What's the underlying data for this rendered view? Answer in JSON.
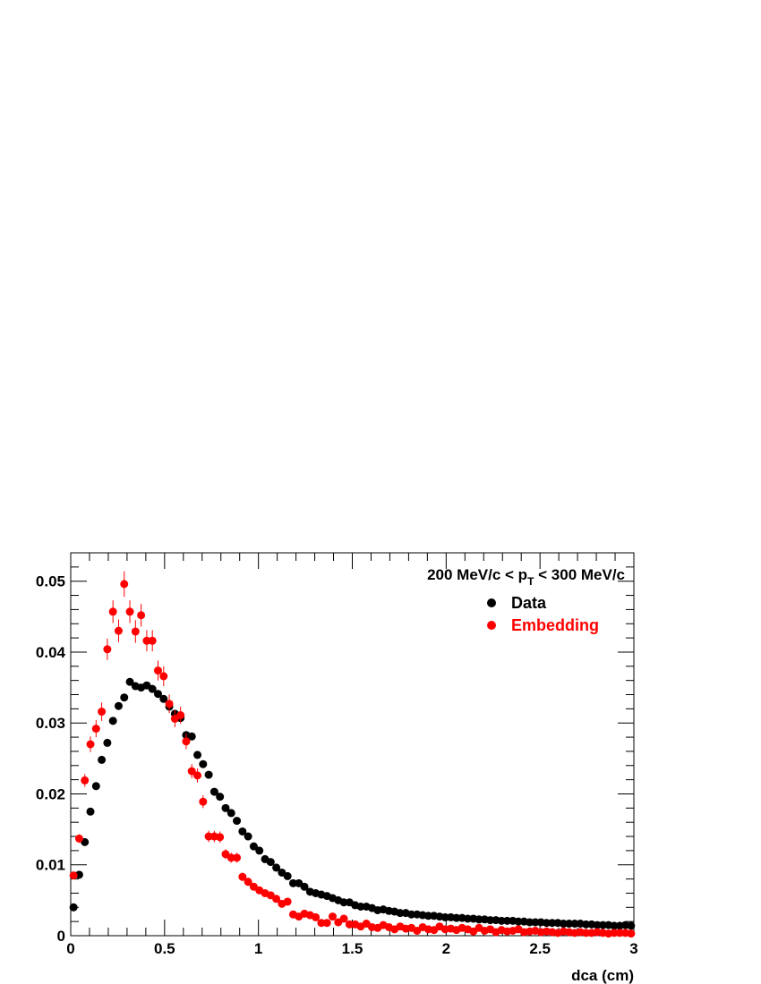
{
  "chart_data": {
    "type": "scatter",
    "header": {
      "part1": "200 MeV/c < p",
      "sub": "T",
      "part2": " < 300 MeV/c"
    },
    "xlabel": "dca (cm)",
    "ylabel": "",
    "xlim": [
      0,
      3
    ],
    "ylim": [
      0,
      0.054
    ],
    "x_ticks": [
      {
        "value": 0,
        "label": "0"
      },
      {
        "value": 0.5,
        "label": "0.5"
      },
      {
        "value": 1,
        "label": "1"
      },
      {
        "value": 1.5,
        "label": "1.5"
      },
      {
        "value": 2,
        "label": "2"
      },
      {
        "value": 2.5,
        "label": "2.5"
      },
      {
        "value": 3,
        "label": "3"
      }
    ],
    "y_ticks": [
      {
        "value": 0,
        "label": "0"
      },
      {
        "value": 0.01,
        "label": "0.01"
      },
      {
        "value": 0.02,
        "label": "0.02"
      },
      {
        "value": 0.03,
        "label": "0.03"
      },
      {
        "value": 0.04,
        "label": "0.04"
      },
      {
        "value": 0.05,
        "label": "0.05"
      }
    ],
    "grid": false,
    "legend_position": "top-right",
    "series": [
      {
        "name": "Data",
        "color": "#000000",
        "x": [
          0.015,
          0.045,
          0.075,
          0.105,
          0.135,
          0.165,
          0.195,
          0.225,
          0.255,
          0.285,
          0.315,
          0.345,
          0.375,
          0.405,
          0.435,
          0.465,
          0.495,
          0.525,
          0.555,
          0.585,
          0.615,
          0.645,
          0.675,
          0.705,
          0.735,
          0.765,
          0.795,
          0.825,
          0.855,
          0.885,
          0.915,
          0.945,
          0.975,
          1.005,
          1.035,
          1.065,
          1.095,
          1.125,
          1.155,
          1.185,
          1.215,
          1.245,
          1.275,
          1.305,
          1.335,
          1.365,
          1.395,
          1.425,
          1.455,
          1.485,
          1.515,
          1.545,
          1.575,
          1.605,
          1.635,
          1.665,
          1.695,
          1.725,
          1.755,
          1.785,
          1.815,
          1.845,
          1.875,
          1.905,
          1.935,
          1.965,
          1.995,
          2.025,
          2.055,
          2.085,
          2.115,
          2.145,
          2.175,
          2.205,
          2.235,
          2.265,
          2.295,
          2.325,
          2.355,
          2.385,
          2.415,
          2.445,
          2.475,
          2.505,
          2.535,
          2.565,
          2.595,
          2.625,
          2.655,
          2.685,
          2.715,
          2.745,
          2.775,
          2.805,
          2.835,
          2.865,
          2.895,
          2.925,
          2.955,
          2.985
        ],
        "y": [
          0.004,
          0.0086,
          0.0132,
          0.0175,
          0.0211,
          0.0248,
          0.0272,
          0.0303,
          0.0324,
          0.0336,
          0.0358,
          0.0352,
          0.035,
          0.0353,
          0.0348,
          0.0341,
          0.0334,
          0.0323,
          0.0313,
          0.0307,
          0.0283,
          0.0281,
          0.0255,
          0.0242,
          0.0227,
          0.0203,
          0.0196,
          0.018,
          0.0173,
          0.0162,
          0.0147,
          0.014,
          0.0126,
          0.012,
          0.0108,
          0.0104,
          0.0096,
          0.0089,
          0.0084,
          0.0074,
          0.0074,
          0.0069,
          0.0062,
          0.006,
          0.0058,
          0.0056,
          0.0053,
          0.005,
          0.0047,
          0.0047,
          0.0043,
          0.0041,
          0.0041,
          0.0039,
          0.0036,
          0.0037,
          0.0035,
          0.0034,
          0.0032,
          0.0032,
          0.003,
          0.003,
          0.0029,
          0.0028,
          0.0028,
          0.0027,
          0.0026,
          0.0026,
          0.0025,
          0.0025,
          0.0024,
          0.0024,
          0.0023,
          0.0023,
          0.0022,
          0.0022,
          0.0021,
          0.0021,
          0.0021,
          0.002,
          0.002,
          0.0019,
          0.0019,
          0.0019,
          0.0018,
          0.0018,
          0.0018,
          0.0017,
          0.0017,
          0.0017,
          0.0017,
          0.0016,
          0.0016,
          0.0015,
          0.0015,
          0.0015,
          0.0014,
          0.0014,
          0.0015,
          0.0014
        ],
        "err": []
      },
      {
        "name": "Embedding",
        "color": "#ff0000",
        "x": [
          0.015,
          0.045,
          0.075,
          0.105,
          0.135,
          0.165,
          0.195,
          0.225,
          0.255,
          0.285,
          0.315,
          0.345,
          0.375,
          0.405,
          0.435,
          0.465,
          0.495,
          0.525,
          0.555,
          0.585,
          0.615,
          0.645,
          0.675,
          0.705,
          0.735,
          0.765,
          0.795,
          0.825,
          0.855,
          0.885,
          0.915,
          0.945,
          0.975,
          1.005,
          1.035,
          1.065,
          1.095,
          1.125,
          1.155,
          1.185,
          1.215,
          1.245,
          1.275,
          1.305,
          1.335,
          1.365,
          1.395,
          1.425,
          1.455,
          1.485,
          1.515,
          1.545,
          1.575,
          1.605,
          1.635,
          1.665,
          1.695,
          1.725,
          1.755,
          1.785,
          1.815,
          1.845,
          1.875,
          1.905,
          1.935,
          1.965,
          1.995,
          2.025,
          2.055,
          2.085,
          2.115,
          2.145,
          2.175,
          2.205,
          2.235,
          2.265,
          2.295,
          2.325,
          2.355,
          2.385,
          2.415,
          2.445,
          2.475,
          2.505,
          2.535,
          2.565,
          2.595,
          2.625,
          2.655,
          2.685,
          2.715,
          2.745,
          2.775,
          2.805,
          2.835,
          2.865,
          2.895,
          2.925,
          2.955,
          2.985
        ],
        "y": [
          0.0085,
          0.0137,
          0.0219,
          0.027,
          0.0292,
          0.0316,
          0.0404,
          0.0457,
          0.043,
          0.0496,
          0.0457,
          0.0429,
          0.0452,
          0.0416,
          0.0416,
          0.0374,
          0.0366,
          0.0327,
          0.0306,
          0.0311,
          0.0274,
          0.0232,
          0.0226,
          0.0189,
          0.014,
          0.014,
          0.0139,
          0.0115,
          0.011,
          0.011,
          0.0083,
          0.0076,
          0.0069,
          0.0064,
          0.006,
          0.0057,
          0.0052,
          0.0045,
          0.0048,
          0.003,
          0.0027,
          0.0031,
          0.0029,
          0.0026,
          0.0018,
          0.0018,
          0.0027,
          0.0019,
          0.0024,
          0.0016,
          0.0016,
          0.0013,
          0.0017,
          0.0012,
          0.0011,
          0.0015,
          0.0012,
          0.0009,
          0.0013,
          0.001,
          0.0011,
          0.0007,
          0.0012,
          0.0009,
          0.0008,
          0.0013,
          0.0009,
          0.001,
          0.0008,
          0.0011,
          0.0009,
          0.0006,
          0.0011,
          0.0007,
          0.0009,
          0.0005,
          0.0008,
          0.0006,
          0.0007,
          0.0009,
          0.0005,
          0.0006,
          0.0007,
          0.0005,
          0.0006,
          0.0005,
          0.0004,
          0.0006,
          0.0005,
          0.0004,
          0.0005,
          0.0004,
          0.0004,
          0.0005,
          0.0004,
          0.0003,
          0.0004,
          0.0004,
          0.0004,
          0.0003
        ],
        "err": [
          0.0004,
          0.0006,
          0.0009,
          0.0011,
          0.0012,
          0.0013,
          0.0015,
          0.0016,
          0.0016,
          0.0018,
          0.0016,
          0.0016,
          0.0016,
          0.0015,
          0.0015,
          0.0014,
          0.0014,
          0.0013,
          0.0012,
          0.0012,
          0.0011,
          0.001,
          0.001,
          0.0009,
          0.0008,
          0.0008,
          0.0008,
          0.0007,
          0.0007,
          0.0007,
          0.0006,
          0.0006,
          0.0005,
          0.0005,
          0.0005,
          0.0005,
          0.0005,
          0.0004,
          0.0004,
          0.0004,
          0.0004,
          0.0004,
          0.0004,
          0.0004,
          0.0003,
          0.0003,
          0.0003,
          0.0003,
          0.0003,
          0.0003,
          0.0003,
          0.0003,
          0.0003,
          0.0003,
          0.0003,
          0.0003,
          0.0003,
          0.0003,
          0.0003,
          0.0003,
          0.0003,
          0.0003,
          0.0003,
          0.0003,
          0.0003,
          0.0003,
          0.0003,
          0.0003,
          0.0003,
          0.0003,
          0.0003,
          0.0003,
          0.0003,
          0.0003,
          0.0003,
          0.0003,
          0.0003,
          0.0003,
          0.0003,
          0.0003,
          0.0003,
          0.0003,
          0.0003,
          0.0003,
          0.0003,
          0.0003,
          0.0003,
          0.0003,
          0.0003,
          0.0003,
          0.0003,
          0.0003,
          0.0003,
          0.0003,
          0.0003,
          0.0003,
          0.0003,
          0.0003,
          0.0003,
          0.0003
        ]
      }
    ]
  }
}
